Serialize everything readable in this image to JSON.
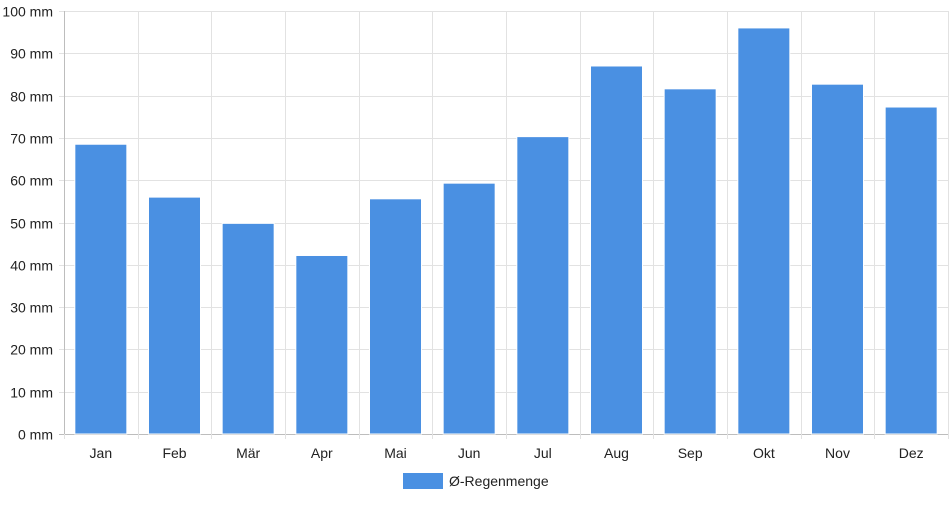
{
  "chart_data": {
    "type": "bar",
    "categories": [
      "Jan",
      "Feb",
      "Mär",
      "Apr",
      "Mai",
      "Jun",
      "Jul",
      "Aug",
      "Sep",
      "Okt",
      "Nov",
      "Dez"
    ],
    "series": [
      {
        "name": "Ø-Regenmenge",
        "values": [
          68.5,
          56,
          49.8,
          42.2,
          55.6,
          59.3,
          70.3,
          87,
          81.6,
          96,
          82.7,
          77.3
        ],
        "color": "#4a90e2"
      }
    ],
    "ylim": [
      0,
      100
    ],
    "y_ticks": [
      0,
      10,
      20,
      30,
      40,
      50,
      60,
      70,
      80,
      90,
      100
    ],
    "y_tick_labels": [
      "0 mm",
      "10 mm",
      "20 mm",
      "30 mm",
      "40 mm",
      "50 mm",
      "60 mm",
      "70 mm",
      "80 mm",
      "90 mm",
      "100 mm"
    ],
    "grid": true,
    "legend_position": "bottom-center",
    "title": "",
    "xlabel": "",
    "ylabel": ""
  }
}
